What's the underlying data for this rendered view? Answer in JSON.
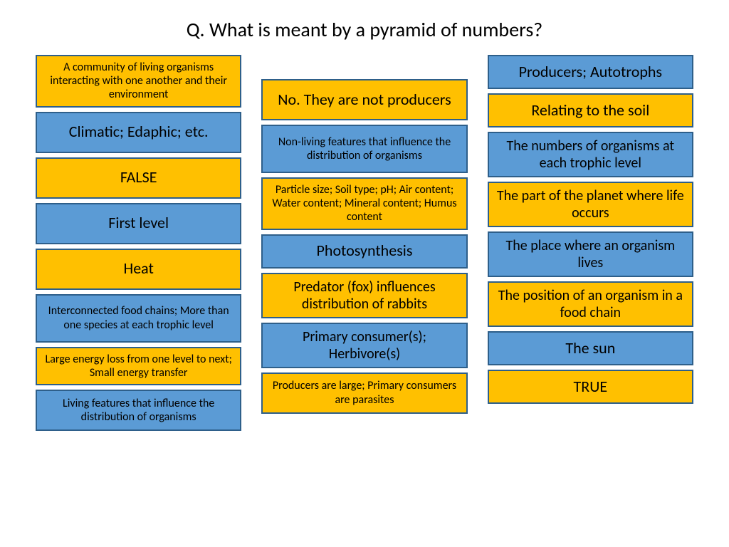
{
  "title": "Q. What is meant by a pyramid of numbers?",
  "colors": {
    "blue": "#5b9bd5",
    "orange": "#ffc000",
    "border": "#2e5f8a",
    "text": "#000000",
    "background": "#ffffff"
  },
  "columns": [
    [
      {
        "text": "A community of living organisms interacting with one another and their environment",
        "bg": "orange",
        "fs": "sm",
        "h": "lg"
      },
      {
        "text": "Climatic; Edaphic; etc.",
        "bg": "blue",
        "fs": "lg",
        "h": "md"
      },
      {
        "text": "FALSE",
        "bg": "orange",
        "fs": "lg",
        "h": "md"
      },
      {
        "text": "First level",
        "bg": "blue",
        "fs": "lg",
        "h": "md"
      },
      {
        "text": "Heat",
        "bg": "orange",
        "fs": "lg",
        "h": "md"
      },
      {
        "text": "Interconnected food chains; More than one species at each trophic level",
        "bg": "blue",
        "fs": "sm",
        "h": "lg"
      },
      {
        "text": "Large energy loss from one level to next; Small energy transfer",
        "bg": "orange",
        "fs": "sm",
        "h": "sm"
      },
      {
        "text": "Living features that influence the distribution of organisms",
        "bg": "blue",
        "fs": "sm",
        "h": "md"
      }
    ],
    [
      {
        "text": "No. They are not producers",
        "bg": "orange",
        "fs": "lg",
        "h": "md"
      },
      {
        "text": "Non-living features that influence the distribution of organisms",
        "bg": "blue",
        "fs": "sm",
        "h": "lg"
      },
      {
        "text": "Particle size; Soil type; pH; Air content; Water content; Mineral content; Humus content",
        "bg": "orange",
        "fs": "sm",
        "h": "lg"
      },
      {
        "text": "Photosynthesis",
        "bg": "blue",
        "fs": "lg",
        "h": "sm"
      },
      {
        "text": "Predator (fox) influences distribution of rabbits",
        "bg": "orange",
        "fs": "md",
        "h": "md"
      },
      {
        "text": "Primary consumer(s); Herbivore(s)",
        "bg": "blue",
        "fs": "md",
        "h": "md"
      },
      {
        "text": "Producers are large; Primary consumers are parasites",
        "bg": "orange",
        "fs": "sm",
        "h": "md"
      }
    ],
    [
      {
        "text": "Producers; Autotrophs",
        "bg": "blue",
        "fs": "lg",
        "h": "sm"
      },
      {
        "text": "Relating to the soil",
        "bg": "orange",
        "fs": "lg",
        "h": "sm"
      },
      {
        "text": "The numbers of organisms at each trophic level",
        "bg": "blue",
        "fs": "md",
        "h": "md"
      },
      {
        "text": "The part of the planet where life occurs",
        "bg": "orange",
        "fs": "md",
        "h": "md"
      },
      {
        "text": "The place where an organism lives",
        "bg": "blue",
        "fs": "md",
        "h": "md"
      },
      {
        "text": "The position of an organism in a food chain",
        "bg": "orange",
        "fs": "md",
        "h": "md"
      },
      {
        "text": "The sun",
        "bg": "blue",
        "fs": "lg",
        "h": "sm"
      },
      {
        "text": "TRUE",
        "bg": "orange",
        "fs": "lg",
        "h": "sm"
      }
    ]
  ]
}
